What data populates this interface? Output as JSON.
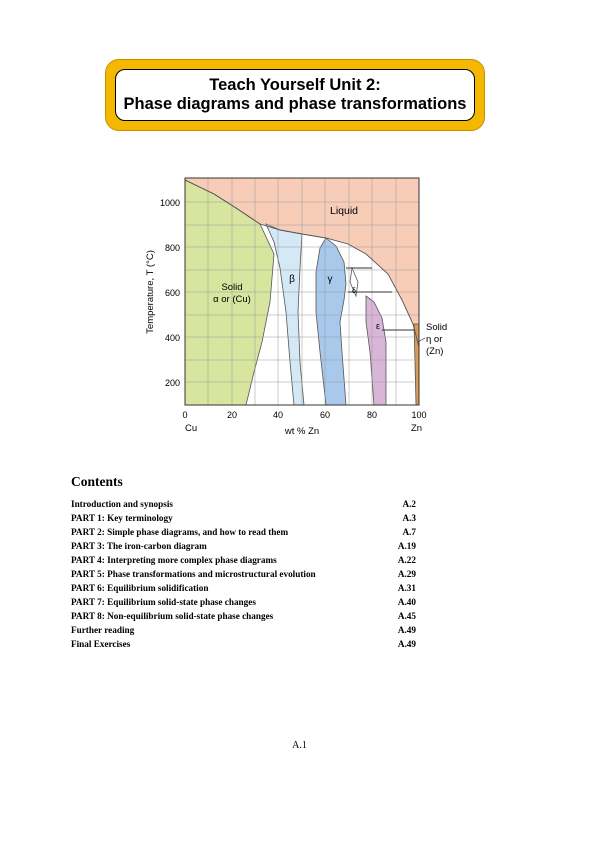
{
  "header": {
    "title_line1": "Teach Yourself Unit 2:",
    "title_line2": "Phase diagrams and phase transformations",
    "banner_color": "#f5b800"
  },
  "figure": {
    "y_axis_label": "Temperature, T  (°C)",
    "x_axis_label": "wt % Zn",
    "x_ticks": [
      "0",
      "20",
      "40",
      "60",
      "80",
      "100"
    ],
    "y_ticks": [
      "200",
      "400",
      "600",
      "800",
      "1000"
    ],
    "left_element": "Cu",
    "right_element": "Zn",
    "regions": {
      "liquid": "Liquid",
      "solid_alpha_line1": "Solid",
      "solid_alpha_line2": "α or (Cu)",
      "beta": "β",
      "gamma": "γ",
      "delta": "δ",
      "epsilon": "ε",
      "solid_eta_line1": "Solid",
      "solid_eta_line2": "η or",
      "solid_eta_line3": "(Zn)"
    },
    "colors": {
      "liquid": "#f8cdb7",
      "alpha": "#d7e59e",
      "beta": "#d5e8f5",
      "gamma": "#a8c8ec",
      "epsilon": "#d9b6d8",
      "eta": "#d99a55"
    }
  },
  "contents": {
    "title": "Contents",
    "items": [
      {
        "label": "Introduction and synopsis",
        "page": "A.2"
      },
      {
        "label": "PART 1:  Key terminology",
        "page": "A.3"
      },
      {
        "label": "PART 2:  Simple phase diagrams, and how to read them",
        "page": "A.7"
      },
      {
        "label": "PART 3:  The iron-carbon diagram",
        "page": "A.19"
      },
      {
        "label": "PART 4:  Interpreting more complex phase diagrams",
        "page": "A.22"
      },
      {
        "label": "PART 5:  Phase transformations and microstructural evolution",
        "page": "A.29"
      },
      {
        "label": "PART 6:  Equilibrium solidification",
        "page": "A.31"
      },
      {
        "label": "PART 7:  Equilibrium solid-state phase changes",
        "page": "A.40"
      },
      {
        "label": "PART 8:  Non-equilibrium solid-state phase changes",
        "page": "A.45"
      },
      {
        "label": "Further reading",
        "page": "A.49"
      },
      {
        "label": "Final Exercises",
        "page": "A.49"
      }
    ]
  },
  "footer": {
    "page_number": "A.1"
  }
}
